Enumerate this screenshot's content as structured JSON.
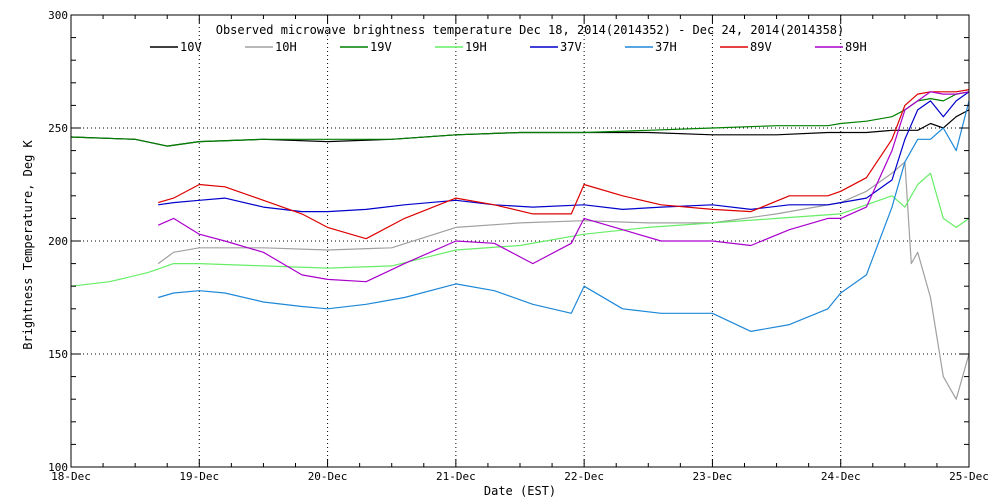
{
  "chart_data": {
    "type": "line",
    "title": "Observed microwave brightness temperature Dec 18, 2014(2014352) - Dec 24, 2014(2014358)",
    "xlabel": "Date (EST)",
    "ylabel": "Brightness Temperature, Deg K",
    "x_tick_labels": [
      "18-Dec",
      "19-Dec",
      "20-Dec",
      "21-Dec",
      "22-Dec",
      "23-Dec",
      "24-Dec",
      "25-Dec"
    ],
    "y_ticks": [
      100,
      150,
      200,
      250,
      300
    ],
    "xlim": [
      0,
      7
    ],
    "ylim": [
      100,
      300
    ],
    "grid": "dotted, at major ticks",
    "legend_position": "top, horizontal",
    "series": [
      {
        "name": "10V",
        "color": "#000000",
        "x": [
          0,
          0.5,
          0.75,
          1,
          1.5,
          2,
          2.5,
          3,
          3.5,
          4,
          4.5,
          5,
          5.5,
          5.9,
          6,
          6.2,
          6.4,
          6.5,
          6.6,
          6.7,
          6.8,
          6.9,
          7
        ],
        "y": [
          246,
          245,
          242,
          244,
          245,
          244,
          245,
          247,
          248,
          248,
          248,
          247,
          247,
          248,
          248,
          248,
          249,
          249,
          249,
          252,
          250,
          255,
          258
        ]
      },
      {
        "name": "10H",
        "color": "#a0a0a0",
        "x": [
          0.68,
          0.8,
          1,
          1.5,
          2,
          2.5,
          3,
          3.5,
          4,
          4.5,
          5,
          5.5,
          6,
          6.2,
          6.4,
          6.5,
          6.55,
          6.6,
          6.7,
          6.8,
          6.9,
          7
        ],
        "y": [
          190,
          195,
          197,
          197,
          196,
          197,
          206,
          208,
          209,
          208,
          208,
          212,
          217,
          222,
          230,
          235,
          190,
          195,
          175,
          140,
          130,
          150
        ]
      },
      {
        "name": "19V",
        "color": "#008000",
        "x": [
          0,
          0.5,
          0.75,
          1,
          1.5,
          2,
          2.5,
          3,
          3.5,
          4,
          4.5,
          5,
          5.5,
          5.9,
          6,
          6.2,
          6.4,
          6.5,
          6.6,
          6.7,
          6.8,
          6.9,
          7
        ],
        "y": [
          246,
          245,
          242,
          244,
          245,
          245,
          245,
          247,
          248,
          248,
          249,
          250,
          251,
          251,
          252,
          253,
          255,
          258,
          262,
          263,
          262,
          265,
          266
        ]
      },
      {
        "name": "19H",
        "color": "#66ee66",
        "x": [
          0,
          0.3,
          0.6,
          0.8,
          1,
          1.5,
          2,
          2.5,
          3,
          3.5,
          4,
          4.5,
          5,
          5.5,
          6,
          6.2,
          6.4,
          6.5,
          6.6,
          6.7,
          6.8,
          6.9,
          7
        ],
        "y": [
          180,
          182,
          186,
          190,
          190,
          189,
          188,
          189,
          196,
          198,
          203,
          206,
          208,
          210,
          212,
          216,
          220,
          215,
          225,
          230,
          210,
          206,
          210
        ]
      },
      {
        "name": "37V",
        "color": "#0000cc",
        "x": [
          0.68,
          0.8,
          1,
          1.2,
          1.5,
          1.8,
          2,
          2.3,
          2.6,
          3,
          3.3,
          3.6,
          4,
          4.3,
          4.6,
          5,
          5.3,
          5.6,
          5.9,
          6,
          6.2,
          6.4,
          6.5,
          6.6,
          6.7,
          6.8,
          6.9,
          7
        ],
        "y": [
          216,
          217,
          218,
          219,
          215,
          213,
          213,
          214,
          216,
          218,
          216,
          215,
          216,
          214,
          215,
          216,
          214,
          216,
          216,
          217,
          219,
          227,
          245,
          258,
          262,
          255,
          262,
          266
        ]
      },
      {
        "name": "37H",
        "color": "#1e88d8",
        "x": [
          0.68,
          0.8,
          1,
          1.2,
          1.5,
          1.8,
          2,
          2.3,
          2.6,
          3,
          3.3,
          3.6,
          3.9,
          4,
          4.3,
          4.6,
          5,
          5.3,
          5.6,
          5.9,
          6,
          6.2,
          6.4,
          6.5,
          6.6,
          6.7,
          6.8,
          6.9,
          7
        ],
        "y": [
          175,
          177,
          178,
          177,
          173,
          171,
          170,
          172,
          175,
          181,
          178,
          172,
          168,
          180,
          170,
          168,
          168,
          160,
          163,
          170,
          177,
          185,
          215,
          235,
          245,
          245,
          250,
          240,
          262
        ]
      },
      {
        "name": "89V",
        "color": "#dd0000",
        "x": [
          0.68,
          0.8,
          1,
          1.2,
          1.5,
          1.8,
          2,
          2.3,
          2.6,
          3,
          3.3,
          3.6,
          3.9,
          4,
          4.3,
          4.6,
          5,
          5.3,
          5.6,
          5.9,
          6,
          6.2,
          6.4,
          6.5,
          6.6,
          6.7,
          6.8,
          6.9,
          7
        ],
        "y": [
          217,
          219,
          225,
          224,
          218,
          212,
          206,
          201,
          210,
          219,
          216,
          212,
          212,
          225,
          220,
          216,
          214,
          213,
          220,
          220,
          222,
          228,
          245,
          260,
          265,
          266,
          266,
          266,
          267
        ]
      },
      {
        "name": "89H",
        "color": "#aa00cc",
        "x": [
          0.68,
          0.8,
          1,
          1.2,
          1.5,
          1.8,
          2,
          2.3,
          2.6,
          3,
          3.3,
          3.6,
          3.9,
          4,
          4.3,
          4.6,
          5,
          5.3,
          5.6,
          5.9,
          6,
          6.2,
          6.4,
          6.5,
          6.6,
          6.7,
          6.8,
          6.9,
          7
        ],
        "y": [
          207,
          210,
          203,
          200,
          195,
          185,
          183,
          182,
          190,
          200,
          199,
          190,
          199,
          210,
          205,
          200,
          200,
          198,
          205,
          210,
          210,
          215,
          240,
          258,
          262,
          266,
          265,
          265,
          266
        ]
      }
    ]
  }
}
